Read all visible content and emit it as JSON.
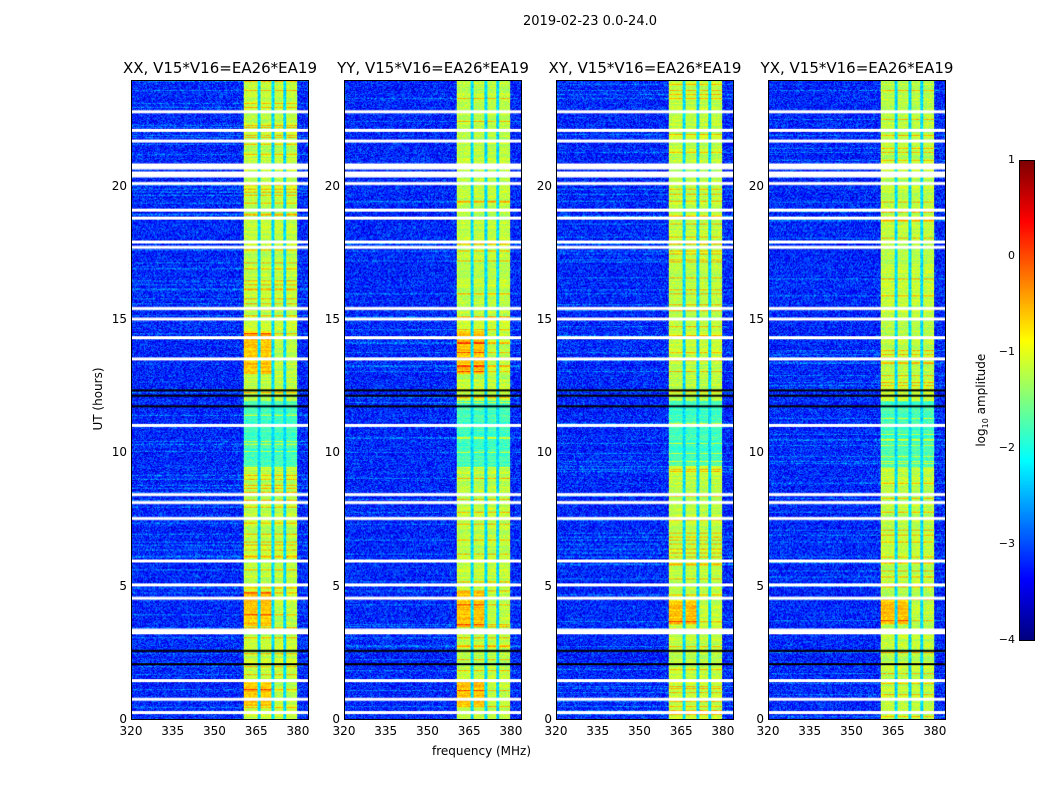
{
  "chart_data": {
    "type": "heatmap",
    "suptitle": "2019-02-23 0.0-24.0",
    "xlabel": "frequency (MHz)",
    "ylabel": "UT (hours)",
    "xlim": [
      320,
      384
    ],
    "ylim": [
      0,
      24
    ],
    "xticks": [
      "320",
      "335",
      "350",
      "365",
      "380"
    ],
    "yticks": [
      "0",
      "5",
      "10",
      "15",
      "20"
    ],
    "panels": [
      {
        "title": "XX, V15*V16=EA26*EA19"
      },
      {
        "title": "YY, V15*V16=EA26*EA19"
      },
      {
        "title": "XY, V15*V16=EA26*EA19"
      },
      {
        "title": "YX, V15*V16=EA26*EA19"
      }
    ],
    "colorbar": {
      "label": "log",
      "label_sub": "10",
      "label_rest": " amplitude",
      "range": [
        -4,
        1
      ],
      "ticks": [
        "1",
        "0",
        "−1",
        "−2",
        "−3",
        "−4"
      ],
      "colormap": "jet"
    },
    "signal_band_mhz": [
      360.5,
      380
    ],
    "background_log_amplitude": -3.2,
    "band_log_amplitude": -1.2,
    "flagged_rows_hours": [
      22.9,
      22.2,
      21.8,
      20.9,
      20.6,
      20.2,
      19.2,
      18.9,
      18.0,
      17.8,
      15.5,
      15.1,
      14.4,
      13.6,
      11.1,
      8.5,
      8.2,
      7.6,
      6.0,
      5.1,
      4.6,
      3.4,
      3.3,
      1.5,
      0.8,
      0.3
    ],
    "blank_rows_hours": [
      12.4,
      12.2,
      11.8,
      2.6,
      2.1
    ]
  }
}
